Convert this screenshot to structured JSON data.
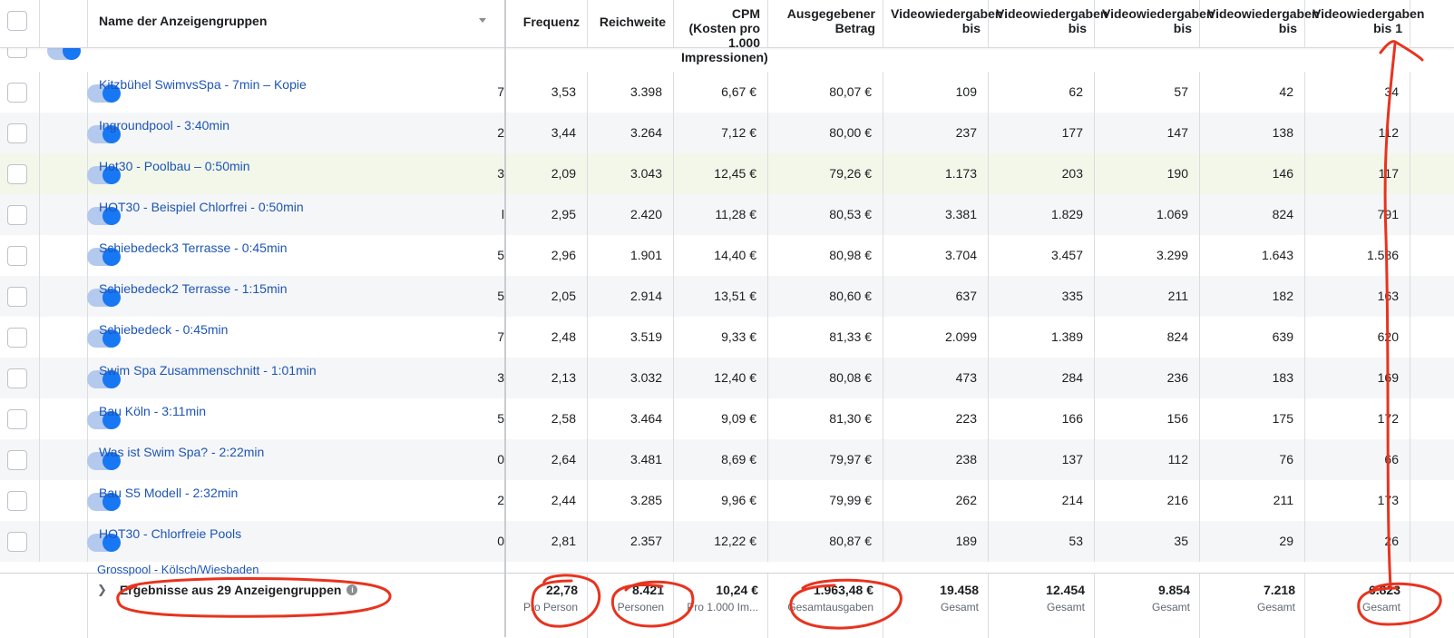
{
  "header": {
    "name_col": "Name der Anzeigengruppen",
    "cols": [
      {
        "label": "Frequenz"
      },
      {
        "label": "Reichweite"
      },
      {
        "label": "CPM (Kosten pro 1.000 Impressionen)"
      },
      {
        "label": "Ausgegebener Betrag"
      },
      {
        "label": "Videowiedergaben bis"
      },
      {
        "label": "Videowiedergaben bis"
      },
      {
        "label": "Videowiedergaben bis"
      },
      {
        "label": "Videowiedergaben bis"
      },
      {
        "label": "Videowiedergaben bis 1"
      }
    ]
  },
  "rows": [
    {
      "name": "Kitzbühel SwimvsSpa - 7min – Kopie",
      "frequenz": "3,53",
      "reichweite": "3.398",
      "cpm": "6,67 €",
      "betrag": "80,07 €",
      "v1": "109",
      "v2": "62",
      "v3": "57",
      "v4": "42",
      "v5": "34"
    },
    {
      "name": "Ingroundpool - 3:40min",
      "frequenz": "3,44",
      "reichweite": "3.264",
      "cpm": "7,12 €",
      "betrag": "80,00 €",
      "v1": "237",
      "v2": "177",
      "v3": "147",
      "v4": "138",
      "v5": "112"
    },
    {
      "name": "Hot30 - Poolbau – 0:50min",
      "frequenz": "2,09",
      "reichweite": "3.043",
      "cpm": "12,45 €",
      "betrag": "79,26 €",
      "v1": "1.173",
      "v2": "203",
      "v3": "190",
      "v4": "146",
      "v5": "117"
    },
    {
      "name": "HOT30 - Beispiel Chlorfrei - 0:50min",
      "frequenz": "2,95",
      "reichweite": "2.420",
      "cpm": "11,28 €",
      "betrag": "80,53 €",
      "v1": "3.381",
      "v2": "1.829",
      "v3": "1.069",
      "v4": "824",
      "v5": "791"
    },
    {
      "name": "Schiebedeck3 Terrasse - 0:45min",
      "frequenz": "2,96",
      "reichweite": "1.901",
      "cpm": "14,40 €",
      "betrag": "80,98 €",
      "v1": "3.704",
      "v2": "3.457",
      "v3": "3.299",
      "v4": "1.643",
      "v5": "1.586"
    },
    {
      "name": "Schiebedeck2 Terrasse - 1:15min",
      "frequenz": "2,05",
      "reichweite": "2.914",
      "cpm": "13,51 €",
      "betrag": "80,60 €",
      "v1": "637",
      "v2": "335",
      "v3": "211",
      "v4": "182",
      "v5": "163"
    },
    {
      "name": "Schiebedeck - 0:45min",
      "frequenz": "2,48",
      "reichweite": "3.519",
      "cpm": "9,33 €",
      "betrag": "81,33 €",
      "v1": "2.099",
      "v2": "1.389",
      "v3": "824",
      "v4": "639",
      "v5": "620"
    },
    {
      "name": "Swim Spa Zusammenschnitt - 1:01min",
      "frequenz": "2,13",
      "reichweite": "3.032",
      "cpm": "12,40 €",
      "betrag": "80,08 €",
      "v1": "473",
      "v2": "284",
      "v3": "236",
      "v4": "183",
      "v5": "169"
    },
    {
      "name": "Bau Köln - 3:11min",
      "frequenz": "2,58",
      "reichweite": "3.464",
      "cpm": "9,09 €",
      "betrag": "81,30 €",
      "v1": "223",
      "v2": "166",
      "v3": "156",
      "v4": "175",
      "v5": "172"
    },
    {
      "name": "Was ist Swim Spa? - 2:22min",
      "frequenz": "2,64",
      "reichweite": "3.481",
      "cpm": "8,69 €",
      "betrag": "79,97 €",
      "v1": "238",
      "v2": "137",
      "v3": "112",
      "v4": "76",
      "v5": "66"
    },
    {
      "name": "Bau S5 Modell - 2:32min",
      "frequenz": "2,44",
      "reichweite": "3.285",
      "cpm": "9,96 €",
      "betrag": "79,99 €",
      "v1": "262",
      "v2": "214",
      "v3": "216",
      "v4": "211",
      "v5": "173"
    },
    {
      "name": "HOT30 - Chlorfreie Pools",
      "frequenz": "2,81",
      "reichweite": "2.357",
      "cpm": "12,22 €",
      "betrag": "80,87 €",
      "v1": "189",
      "v2": "53",
      "v3": "35",
      "v4": "29",
      "v5": "26"
    }
  ],
  "cut_digits": [
    "7",
    "2",
    "3",
    "l",
    "5",
    "5",
    "7",
    "3",
    "5",
    "0",
    "2",
    "0"
  ],
  "footer": {
    "results_label": "Ergebnisse aus 29 Anzeigengruppen",
    "info_icon": "i",
    "cells": [
      {
        "value": "22,78",
        "sub": "Pro Person"
      },
      {
        "value": "8.421",
        "sub": "Personen"
      },
      {
        "value": "10,24 €",
        "sub": "Pro 1.000 Im..."
      },
      {
        "value": "1.963,48 €",
        "sub": "Gesamtausgaben"
      },
      {
        "value": "19.458",
        "sub": "Gesamt"
      },
      {
        "value": "12.454",
        "sub": "Gesamt"
      },
      {
        "value": "9.854",
        "sub": "Gesamt"
      },
      {
        "value": "7.218",
        "sub": "Gesamt"
      },
      {
        "value": "6.823",
        "sub": "Gesamt"
      }
    ]
  },
  "partial_bottom_name": "Grosspool - Kölsch/Wiesbaden",
  "colors": {
    "link": "#1d55b6",
    "annotation": "#e8331e",
    "toggle": "#1877f2"
  }
}
